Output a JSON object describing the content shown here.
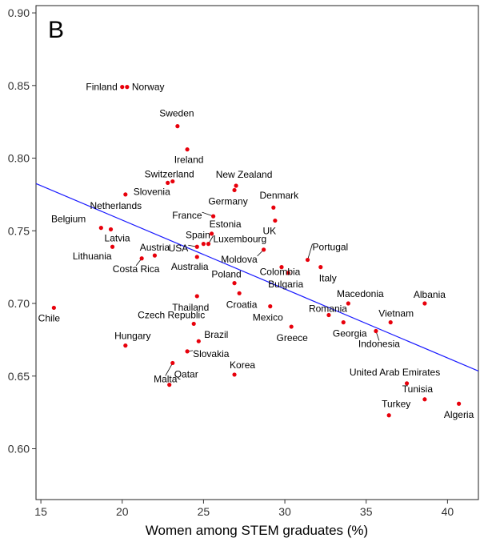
{
  "chart_data": {
    "type": "scatter",
    "panel_label": "B",
    "title": "",
    "xlabel": "Women among STEM graduates (%)",
    "ylabel": "",
    "xlim": [
      14.7,
      41.9
    ],
    "ylim": [
      0.565,
      0.905
    ],
    "x_ticks": [
      "15",
      "20",
      "25",
      "30",
      "35",
      "40"
    ],
    "y_ticks": [
      "0.60",
      "0.65",
      "0.70",
      "0.75",
      "0.80",
      "0.85",
      "0.90"
    ],
    "grid": false,
    "point_color": "#e8000b",
    "line_color": "#1a1aff",
    "trendline": {
      "x": [
        14.7,
        41.9
      ],
      "y": [
        0.7825,
        0.6535
      ]
    },
    "points": [
      {
        "name": "Finland",
        "x": 20.0,
        "y": 0.849
      },
      {
        "name": "Norway",
        "x": 20.3,
        "y": 0.849
      },
      {
        "name": "Sweden",
        "x": 23.4,
        "y": 0.822
      },
      {
        "name": "Ireland",
        "x": 24.0,
        "y": 0.806
      },
      {
        "name": "Switzerland",
        "x": 22.8,
        "y": 0.783
      },
      {
        "name": "Slovenia",
        "x": 23.1,
        "y": 0.784
      },
      {
        "name": "New Zealand",
        "x": 27.0,
        "y": 0.781
      },
      {
        "name": "Germany",
        "x": 26.9,
        "y": 0.778
      },
      {
        "name": "Netherlands",
        "x": 20.2,
        "y": 0.775
      },
      {
        "name": "Denmark",
        "x": 29.3,
        "y": 0.766
      },
      {
        "name": "France",
        "x": 25.6,
        "y": 0.76
      },
      {
        "name": "UK",
        "x": 29.4,
        "y": 0.757
      },
      {
        "name": "Belgium",
        "x": 18.7,
        "y": 0.752
      },
      {
        "name": "Latvia",
        "x": 19.3,
        "y": 0.751
      },
      {
        "name": "Estonia",
        "x": 25.5,
        "y": 0.748
      },
      {
        "name": "Spain",
        "x": 25.0,
        "y": 0.741
      },
      {
        "name": "USA",
        "x": 24.6,
        "y": 0.739
      },
      {
        "name": "Luxembourg",
        "x": 25.3,
        "y": 0.741
      },
      {
        "name": "Lithuania",
        "x": 19.4,
        "y": 0.739
      },
      {
        "name": "Moldova",
        "x": 28.7,
        "y": 0.737
      },
      {
        "name": "Austria",
        "x": 22.0,
        "y": 0.733
      },
      {
        "name": "Costa Rica",
        "x": 21.2,
        "y": 0.731
      },
      {
        "name": "Australia",
        "x": 24.6,
        "y": 0.732
      },
      {
        "name": "Portugal",
        "x": 31.4,
        "y": 0.73
      },
      {
        "name": "Colombia",
        "x": 29.8,
        "y": 0.725
      },
      {
        "name": "Italy",
        "x": 32.2,
        "y": 0.725
      },
      {
        "name": "Bulgaria",
        "x": 30.2,
        "y": 0.721
      },
      {
        "name": "Poland",
        "x": 26.9,
        "y": 0.714
      },
      {
        "name": "Croatia",
        "x": 27.2,
        "y": 0.707
      },
      {
        "name": "Thailand",
        "x": 24.6,
        "y": 0.705
      },
      {
        "name": "Albania",
        "x": 38.6,
        "y": 0.7
      },
      {
        "name": "Macedonia",
        "x": 33.9,
        "y": 0.7
      },
      {
        "name": "Mexico",
        "x": 29.1,
        "y": 0.698
      },
      {
        "name": "Chile",
        "x": 15.8,
        "y": 0.697
      },
      {
        "name": "Romania",
        "x": 32.7,
        "y": 0.692
      },
      {
        "name": "Vietnam",
        "x": 36.5,
        "y": 0.687
      },
      {
        "name": "Czech Republic",
        "x": 24.4,
        "y": 0.686
      },
      {
        "name": "Georgia",
        "x": 33.6,
        "y": 0.687
      },
      {
        "name": "Greece",
        "x": 30.4,
        "y": 0.684
      },
      {
        "name": "Indonesia",
        "x": 35.6,
        "y": 0.681
      },
      {
        "name": "Brazil",
        "x": 24.7,
        "y": 0.674
      },
      {
        "name": "Hungary",
        "x": 20.2,
        "y": 0.671
      },
      {
        "name": "Slovakia",
        "x": 24.0,
        "y": 0.667
      },
      {
        "name": "Malta",
        "x": 23.1,
        "y": 0.659
      },
      {
        "name": "Korea",
        "x": 26.9,
        "y": 0.651
      },
      {
        "name": "United Arab Emirates",
        "x": 37.5,
        "y": 0.645
      },
      {
        "name": "Qatar",
        "x": 22.9,
        "y": 0.644
      },
      {
        "name": "Tunisia",
        "x": 38.6,
        "y": 0.634
      },
      {
        "name": "Algeria",
        "x": 40.7,
        "y": 0.631
      },
      {
        "name": "Turkey",
        "x": 36.4,
        "y": 0.623
      }
    ]
  }
}
